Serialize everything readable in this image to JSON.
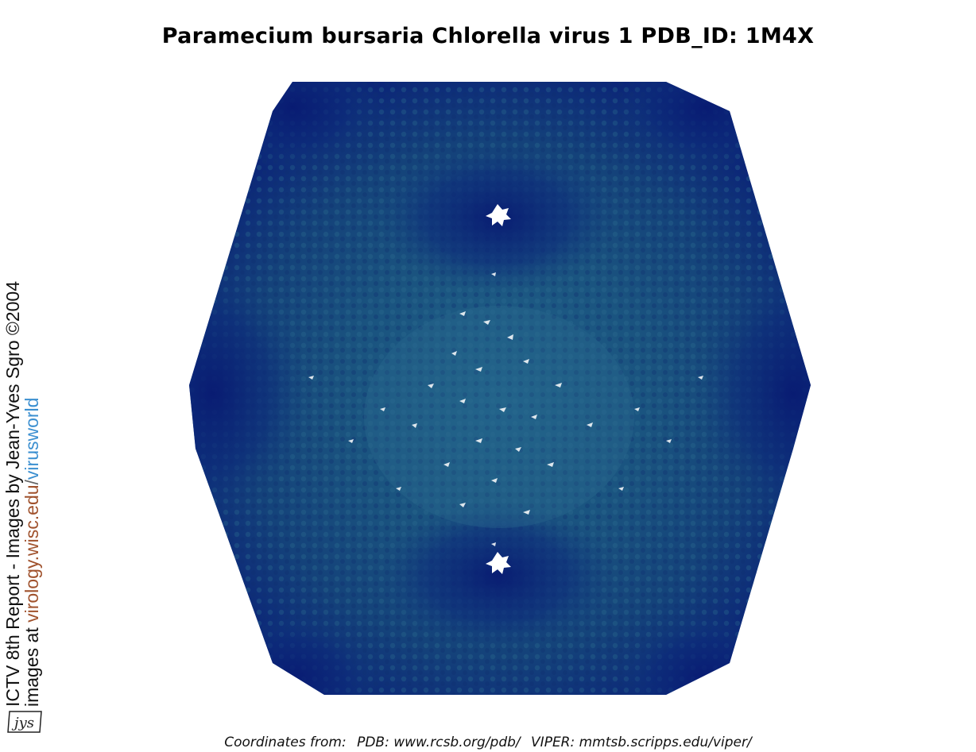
{
  "title": "Paramecium bursaria Chlorella virus 1 PDB_ID: 1M4X",
  "sidebar": {
    "line1": "ICTV 8th Report - Images by Jean-Yves Sgro ©2004",
    "line2_prefix": "images at ",
    "line2_url": "virology.wisc.edu",
    "line2_slash": "/",
    "line2_suffix": "virusworld"
  },
  "logo": {
    "text": "jys"
  },
  "footer": {
    "coords_label": "Coordinates from:",
    "pdb": "PDB: www.rcsb.org/pdb/",
    "viper": "VIPER: mmtsb.scripps.edu/viper/"
  },
  "colors": {
    "capsid_center": "#1d5a86",
    "capsid_mid": "#174a7a",
    "capsid_edge": "#0a1f78",
    "vertex_dark": "#061a6e"
  }
}
